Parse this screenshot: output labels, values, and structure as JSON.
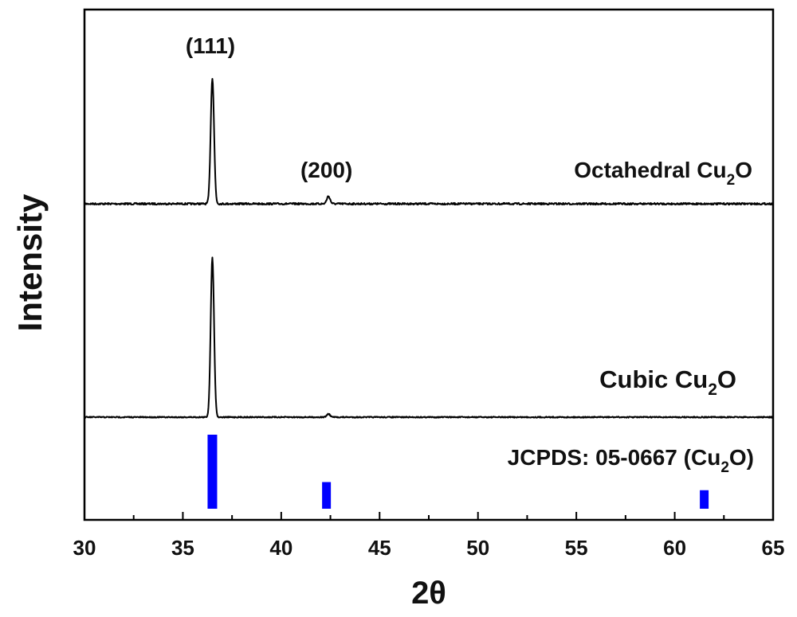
{
  "chart_data": {
    "type": "line",
    "xlabel": "2θ",
    "ylabel": "Intensity",
    "xlim": [
      30,
      65
    ],
    "xticks": [
      "30",
      "35",
      "40",
      "45",
      "50",
      "55",
      "60",
      "65"
    ],
    "yticks": "none",
    "grid": false,
    "annotations": [
      {
        "text": "(111)",
        "x": 36.4
      },
      {
        "text": "(200)",
        "x": 42.3
      }
    ],
    "series": [
      {
        "name": "Octahedral Cu2O",
        "label_main": "Octahedral Cu",
        "label_sub": "2",
        "label_end": "O",
        "color": "#000000",
        "peaks": [
          {
            "x": 36.5,
            "relative_intensity": 1.0
          },
          {
            "x": 42.4,
            "relative_intensity": 0.06
          }
        ]
      },
      {
        "name": "Cubic Cu2O",
        "label_main": "Cubic Cu",
        "label_sub": "2",
        "label_end": "O",
        "color": "#000000",
        "peaks": [
          {
            "x": 36.5,
            "relative_intensity": 1.0
          },
          {
            "x": 42.4,
            "relative_intensity": 0.02
          }
        ]
      }
    ],
    "reference": {
      "name": "JCPDS: 05-0667 (Cu2O)",
      "label_main": "JCPDS: 05-0667 (Cu",
      "label_sub": "2",
      "label_end": "O)",
      "color": "#0000ff",
      "lines": [
        {
          "x": 36.5,
          "relative_intensity": 1.0
        },
        {
          "x": 42.3,
          "relative_intensity": 0.36
        },
        {
          "x": 61.5,
          "relative_intensity": 0.25
        }
      ]
    }
  }
}
